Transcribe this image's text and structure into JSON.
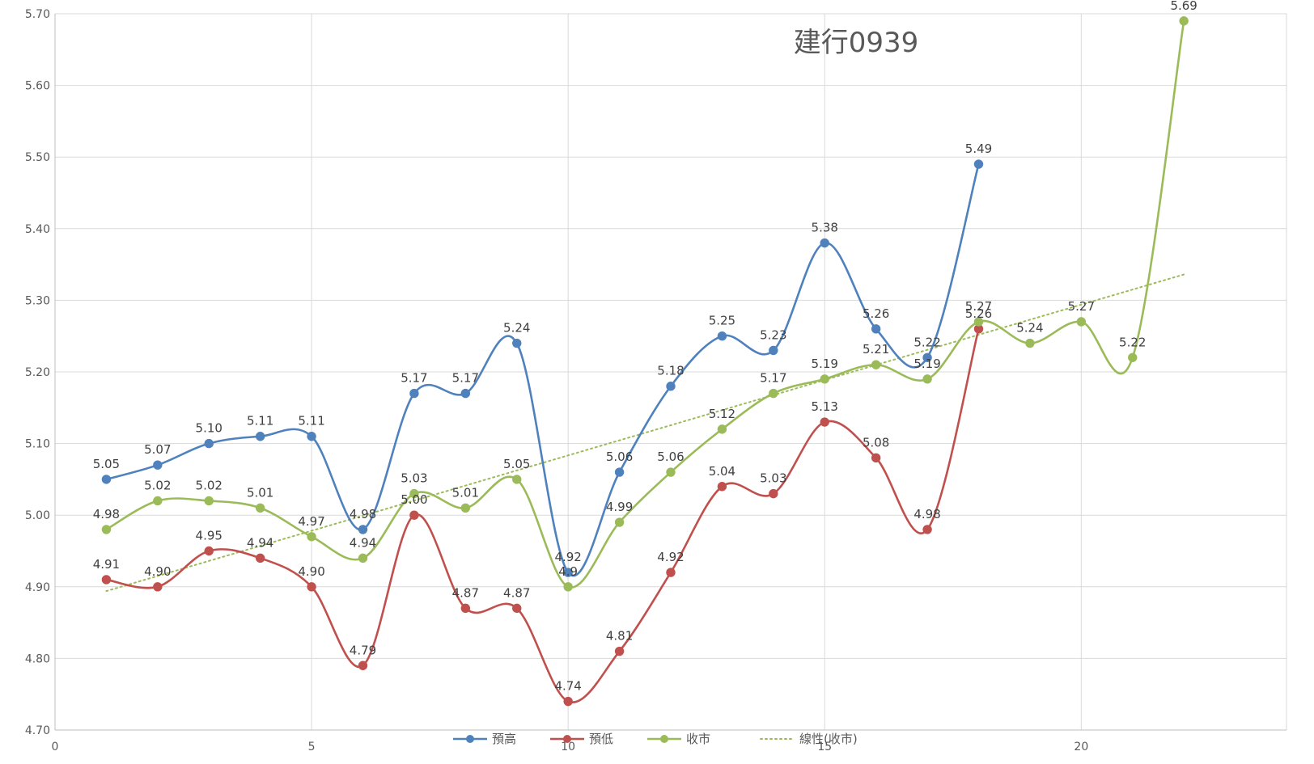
{
  "chart_data": {
    "type": "line",
    "title": "建行0939",
    "xlim": [
      0,
      24
    ],
    "ylim": [
      4.7,
      5.7
    ],
    "x_ticks": [
      0,
      5,
      10,
      15,
      20
    ],
    "y_ticks": [
      "4.70",
      "4.80",
      "4.90",
      "5.00",
      "5.10",
      "5.20",
      "5.30",
      "5.40",
      "5.50",
      "5.60",
      "5.70"
    ],
    "grid": true,
    "smooth": true,
    "legend_position": "bottom",
    "series": [
      {
        "name": "預高",
        "color": "#4F81BD",
        "points": [
          {
            "x": 1,
            "y": 5.05,
            "label": "5.05"
          },
          {
            "x": 2,
            "y": 5.07,
            "label": "5.07"
          },
          {
            "x": 3,
            "y": 5.1,
            "label": "5.10"
          },
          {
            "x": 4,
            "y": 5.11,
            "label": "5.11"
          },
          {
            "x": 5,
            "y": 5.11,
            "label": "5.11"
          },
          {
            "x": 6,
            "y": 4.98,
            "label": "4.98"
          },
          {
            "x": 7,
            "y": 5.17,
            "label": "5.17"
          },
          {
            "x": 8,
            "y": 5.17,
            "label": "5.17"
          },
          {
            "x": 9,
            "y": 5.24,
            "label": "5.24"
          },
          {
            "x": 10,
            "y": 4.92,
            "label": "4.92"
          },
          {
            "x": 11,
            "y": 5.06,
            "label": "5.06"
          },
          {
            "x": 12,
            "y": 5.18,
            "label": "5.18"
          },
          {
            "x": 13,
            "y": 5.25,
            "label": "5.25"
          },
          {
            "x": 14,
            "y": 5.23,
            "label": "5.23"
          },
          {
            "x": 15,
            "y": 5.38,
            "label": "5.38"
          },
          {
            "x": 16,
            "y": 5.26,
            "label": "5.26"
          },
          {
            "x": 17,
            "y": 5.22,
            "label": "5.22"
          },
          {
            "x": 18,
            "y": 5.49,
            "label": "5.49"
          }
        ]
      },
      {
        "name": "預低",
        "color": "#C0504D",
        "points": [
          {
            "x": 1,
            "y": 4.91,
            "label": "4.91"
          },
          {
            "x": 2,
            "y": 4.9,
            "label": "4.90"
          },
          {
            "x": 3,
            "y": 4.95,
            "label": "4.95"
          },
          {
            "x": 4,
            "y": 4.94,
            "label": "4.94"
          },
          {
            "x": 5,
            "y": 4.9,
            "label": "4.90"
          },
          {
            "x": 6,
            "y": 4.79,
            "label": "4.79"
          },
          {
            "x": 7,
            "y": 5.0,
            "label": "5.00"
          },
          {
            "x": 8,
            "y": 4.87,
            "label": "4.87"
          },
          {
            "x": 9,
            "y": 4.87,
            "label": "4.87"
          },
          {
            "x": 10,
            "y": 4.74,
            "label": "4.74"
          },
          {
            "x": 11,
            "y": 4.81,
            "label": "4.81"
          },
          {
            "x": 12,
            "y": 4.92,
            "label": "4.92"
          },
          {
            "x": 13,
            "y": 5.04,
            "label": "5.04"
          },
          {
            "x": 14,
            "y": 5.03,
            "label": "5.03"
          },
          {
            "x": 15,
            "y": 5.13,
            "label": "5.13"
          },
          {
            "x": 16,
            "y": 5.08,
            "label": "5.08"
          },
          {
            "x": 17,
            "y": 4.98,
            "label": "4.98"
          },
          {
            "x": 18,
            "y": 5.26,
            "label": "5.26"
          }
        ]
      },
      {
        "name": "收市",
        "color": "#9BBB59",
        "points": [
          {
            "x": 1,
            "y": 4.98,
            "label": "4.98"
          },
          {
            "x": 2,
            "y": 5.02,
            "label": "5.02"
          },
          {
            "x": 3,
            "y": 5.02,
            "label": "5.02"
          },
          {
            "x": 4,
            "y": 5.01,
            "label": "5.01"
          },
          {
            "x": 5,
            "y": 4.97,
            "label": "4.97"
          },
          {
            "x": 6,
            "y": 4.94,
            "label": "4.94"
          },
          {
            "x": 7,
            "y": 5.03,
            "label": "5.03"
          },
          {
            "x": 8,
            "y": 5.01,
            "label": "5.01"
          },
          {
            "x": 9,
            "y": 5.05,
            "label": "5.05"
          },
          {
            "x": 10,
            "y": 4.9,
            "label": "4.9"
          },
          {
            "x": 11,
            "y": 4.99,
            "label": "4.99"
          },
          {
            "x": 12,
            "y": 5.06,
            "label": "5.06"
          },
          {
            "x": 13,
            "y": 5.12,
            "label": "5.12"
          },
          {
            "x": 14,
            "y": 5.17,
            "label": "5.17"
          },
          {
            "x": 15,
            "y": 5.19,
            "label": "5.19"
          },
          {
            "x": 16,
            "y": 5.21,
            "label": "5.21"
          },
          {
            "x": 17,
            "y": 5.19,
            "label": "5.19"
          },
          {
            "x": 18,
            "y": 5.27,
            "label": "5.27"
          },
          {
            "x": 19,
            "y": 5.24,
            "label": "5.24"
          },
          {
            "x": 20,
            "y": 5.27,
            "label": "5.27"
          },
          {
            "x": 21,
            "y": 5.22,
            "label": "5.22"
          },
          {
            "x": 22,
            "y": 5.69,
            "label": "5.69"
          }
        ]
      }
    ],
    "trendline": {
      "name": "線性(收市)",
      "of_series": "收市",
      "color": "#9BBB59",
      "style": "dotted",
      "x_range": [
        1,
        22
      ],
      "y_values": [
        4.894,
        5.336
      ]
    }
  }
}
